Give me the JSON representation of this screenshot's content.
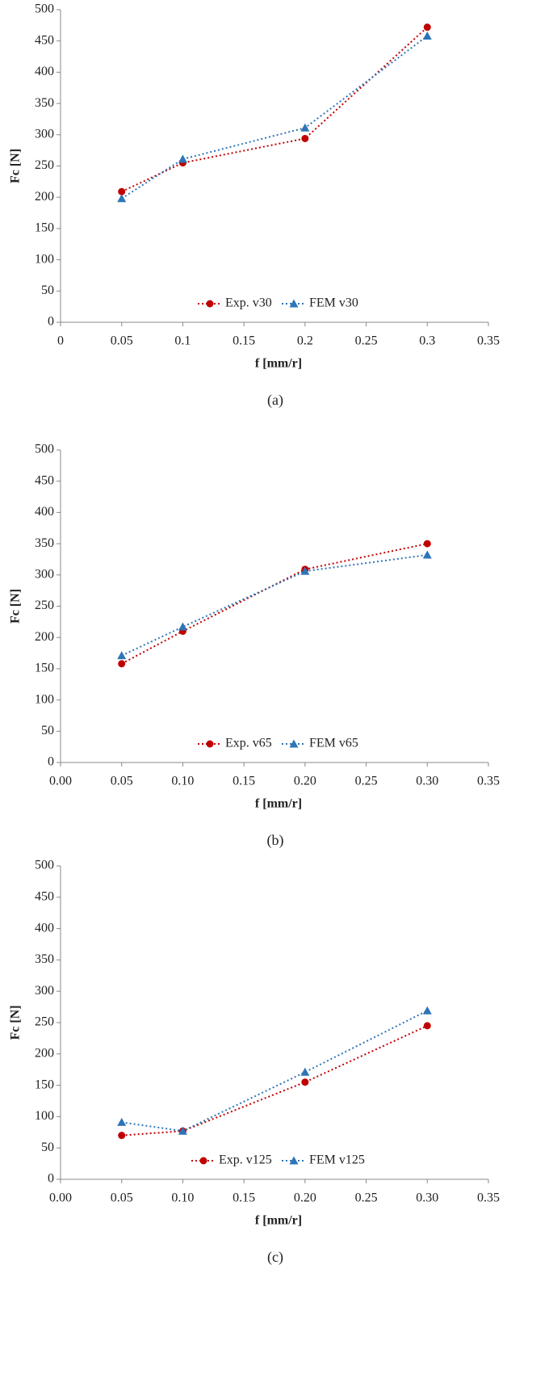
{
  "chart_data": [
    {
      "type": "line",
      "caption": "(a)",
      "x_label": "f [mm/r]",
      "y_label": "Fc [N]",
      "x": [
        0.05,
        0.1,
        0.2,
        0.3
      ],
      "xlim": [
        0,
        0.35
      ],
      "xticks": [
        0,
        0.05,
        0.1,
        0.15,
        0.2,
        0.25,
        0.3,
        0.35
      ],
      "ylim": [
        0,
        500
      ],
      "yticks": [
        0,
        50,
        100,
        150,
        200,
        250,
        300,
        350,
        400,
        450,
        500
      ],
      "series": [
        {
          "name": "Exp. v30",
          "color": "#c00000",
          "marker": "circle",
          "values": [
            209,
            255,
            294,
            472
          ]
        },
        {
          "name": "FEM v30",
          "color": "#2e75b6",
          "marker": "triangle",
          "values": [
            198,
            261,
            311,
            458
          ]
        }
      ]
    },
    {
      "type": "line",
      "caption": "(b)",
      "x_label": "f [mm/r]",
      "y_label": "Fc [N]",
      "x": [
        0.05,
        0.1,
        0.2,
        0.3
      ],
      "xlim": [
        0,
        0.35
      ],
      "xticks": [
        {
          "value": 0,
          "label": "0.00"
        },
        0.05,
        {
          "value": 0.1,
          "label": "0.10"
        },
        0.15,
        {
          "value": 0.2,
          "label": "0.20"
        },
        0.25,
        {
          "value": 0.3,
          "label": "0.30"
        },
        0.35
      ],
      "ylim": [
        0,
        500
      ],
      "yticks": [
        0,
        50,
        100,
        150,
        200,
        250,
        300,
        350,
        400,
        450,
        500
      ],
      "series": [
        {
          "name": "Exp. v65",
          "color": "#c00000",
          "marker": "circle",
          "values": [
            158,
            210,
            309,
            350
          ]
        },
        {
          "name": "FEM v65",
          "color": "#2e75b6",
          "marker": "triangle",
          "values": [
            171,
            217,
            306,
            332
          ]
        }
      ]
    },
    {
      "type": "line",
      "caption": "(c)",
      "x_label": "f [mm/r]",
      "y_label": "Fc [N]",
      "x": [
        0.05,
        0.1,
        0.2,
        0.3
      ],
      "xlim": [
        0,
        0.35
      ],
      "xticks": [
        {
          "value": 0,
          "label": "0.00"
        },
        0.05,
        {
          "value": 0.1,
          "label": "0.10"
        },
        0.15,
        {
          "value": 0.2,
          "label": "0.20"
        },
        0.25,
        {
          "value": 0.3,
          "label": "0.30"
        },
        0.35
      ],
      "ylim": [
        0,
        500
      ],
      "yticks": [
        0,
        50,
        100,
        150,
        200,
        250,
        300,
        350,
        400,
        450,
        500
      ],
      "series": [
        {
          "name": "Exp. v125",
          "color": "#c00000",
          "marker": "circle",
          "values": [
            70,
            77,
            155,
            245
          ]
        },
        {
          "name": "FEM v125",
          "color": "#2e75b6",
          "marker": "triangle",
          "values": [
            91,
            77,
            171,
            269
          ]
        }
      ]
    }
  ]
}
